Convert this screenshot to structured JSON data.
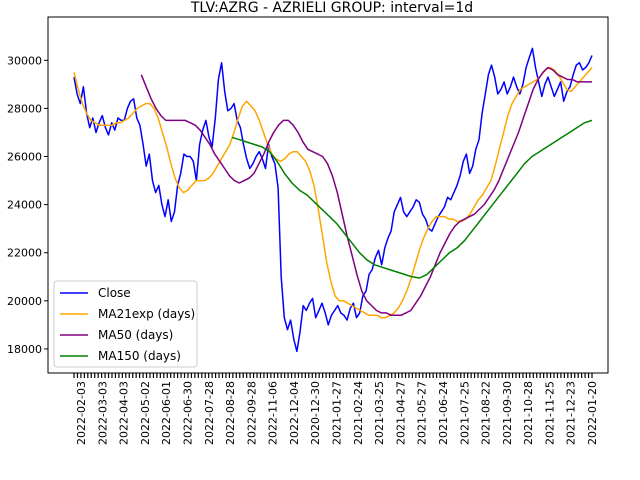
{
  "chart_data": {
    "type": "line",
    "title": "TLV:AZRG - AZRIELI GROUP: interval=1d",
    "xlabel": "",
    "ylabel": "",
    "x_tick_labels": [
      "2022-02-03",
      "2022-03-03",
      "2022-04-03",
      "2022-05-02",
      "2022-06-01",
      "2022-06-30",
      "2022-07-28",
      "2022-08-28",
      "2022-09-28",
      "2022-11-06",
      "2022-12-04",
      "2020-12-30",
      "2021-01-27",
      "2021-02-24",
      "2021-03-25",
      "2021-04-27",
      "2021-05-27",
      "2021-06-24",
      "2021-07-25",
      "2021-08-22",
      "2021-09-30",
      "2021-10-28",
      "2021-11-25",
      "2021-12-23",
      "2022-01-20"
    ],
    "y_tick_labels": [
      "18000",
      "20000",
      "22000",
      "24000",
      "26000",
      "28000",
      "30000"
    ],
    "y_ticks": [
      18000,
      20000,
      22000,
      24000,
      26000,
      28000,
      30000
    ],
    "ylim": [
      17000,
      31800
    ],
    "grid": false,
    "legend_position": "lower-left",
    "series": [
      {
        "name": "Close",
        "color": "#0000ff",
        "values": [
          29300,
          28600,
          28200,
          28900,
          27800,
          27200,
          27600,
          27000,
          27400,
          27700,
          27200,
          26900,
          27400,
          27100,
          27600,
          27500,
          27500,
          28000,
          28300,
          28400,
          27600,
          27300,
          26500,
          25600,
          26100,
          25000,
          24500,
          24800,
          24000,
          23500,
          24200,
          23300,
          23700,
          24800,
          25300,
          26100,
          26000,
          26000,
          25800,
          25000,
          26500,
          27100,
          27500,
          26800,
          26400,
          27600,
          29200,
          29900,
          28700,
          27900,
          28000,
          28200,
          27500,
          27200,
          26500,
          25900,
          25500,
          25700,
          26000,
          26200,
          25900,
          25500,
          26500,
          26000,
          25700,
          24700,
          21000,
          19300,
          18800,
          19200,
          18400,
          17900,
          18700,
          19800,
          19600,
          19900,
          20100,
          19300,
          19600,
          19900,
          19500,
          19000,
          19400,
          19600,
          19800,
          19500,
          19400,
          19200,
          19700,
          19900,
          19300,
          19500,
          20200,
          20400,
          21100,
          21300,
          21800,
          22100,
          21500,
          22200,
          22600,
          22900,
          23700,
          24000,
          24300,
          23700,
          23500,
          23700,
          23900,
          24200,
          24100,
          23600,
          23400,
          23000,
          22900,
          23200,
          23500,
          23700,
          23900,
          24300,
          24200,
          24500,
          24800,
          25200,
          25800,
          26100,
          25300,
          25600,
          26300,
          26700,
          27800,
          28600,
          29400,
          29800,
          29300,
          28600,
          28800,
          29100,
          28600,
          28900,
          29300,
          28900,
          28600,
          29000,
          29700,
          30100,
          30500,
          29700,
          29100,
          28500,
          29000,
          29300,
          28900,
          28500,
          28800,
          29100,
          28300,
          28700,
          28900,
          29400,
          29800,
          29900,
          29600,
          29700,
          29900,
          30200
        ]
      },
      {
        "name": "MA21exp (days)",
        "color": "#ffa500",
        "values": [
          29500,
          28800,
          28200,
          27800,
          27500,
          27400,
          27300,
          27300,
          27300,
          27300,
          27400,
          27400,
          27500,
          27600,
          27800,
          28000,
          28100,
          28200,
          28200,
          28000,
          27600,
          27000,
          26400,
          25700,
          25100,
          24700,
          24500,
          24600,
          24800,
          25000,
          25000,
          25000,
          25100,
          25300,
          25600,
          25900,
          26200,
          26500,
          27000,
          27600,
          28100,
          28300,
          28100,
          27900,
          27500,
          27000,
          26500,
          26100,
          25900,
          25800,
          25900,
          26100,
          26200,
          26200,
          26000,
          25800,
          25400,
          24800,
          23800,
          22700,
          21600,
          20800,
          20200,
          20000,
          20000,
          19900,
          19800,
          19700,
          19600,
          19500,
          19400,
          19400,
          19400,
          19300,
          19300,
          19400,
          19500,
          19700,
          20000,
          20400,
          20900,
          21500,
          22100,
          22600,
          23000,
          23300,
          23500,
          23500,
          23500,
          23400,
          23400,
          23300,
          23300,
          23400,
          23600,
          23900,
          24200,
          24400,
          24700,
          25000,
          25600,
          26300,
          27000,
          27700,
          28200,
          28500,
          28800,
          28900,
          29000,
          29100,
          29200,
          29400,
          29600,
          29700,
          29600,
          29400,
          29100,
          28800,
          28700,
          28900,
          29100,
          29300,
          29500,
          29700
        ]
      },
      {
        "name": "MA50 (days)",
        "color": "#800080",
        "values": [
          29400,
          28900,
          28400,
          28000,
          27700,
          27500,
          27500,
          27500,
          27500,
          27500,
          27400,
          27300,
          27100,
          26800,
          26500,
          26100,
          25800,
          25500,
          25200,
          25000,
          24900,
          25000,
          25100,
          25300,
          25700,
          26100,
          26600,
          27000,
          27300,
          27500,
          27500,
          27300,
          27000,
          26600,
          26300,
          26200,
          26100,
          26000,
          25700,
          25200,
          24500,
          23600,
          22700,
          21900,
          21100,
          20400,
          20000,
          19800,
          19600,
          19500,
          19500,
          19400,
          19400,
          19400,
          19500,
          19600,
          19900,
          20200,
          20600,
          21000,
          21500,
          22000,
          22400,
          22800,
          23100,
          23300,
          23400,
          23500,
          23600,
          23800,
          24000,
          24300,
          24600,
          25000,
          25500,
          26000,
          26500,
          27000,
          27600,
          28200,
          28800,
          29200,
          29500,
          29700,
          29600,
          29400,
          29300,
          29200,
          29200,
          29100,
          29100,
          29100,
          29100
        ]
      },
      {
        "name": "MA150 (days)",
        "color": "#008000",
        "values": [
          26800,
          26700,
          26600,
          26500,
          26400,
          26200,
          25800,
          25300,
          24900,
          24600,
          24400,
          24100,
          23800,
          23500,
          23200,
          22800,
          22400,
          22000,
          21700,
          21500,
          21400,
          21300,
          21200,
          21100,
          21000,
          20950,
          21100,
          21400,
          21700,
          22000,
          22200,
          22500,
          22900,
          23300,
          23700,
          24100,
          24500,
          24900,
          25300,
          25700,
          26000,
          26200,
          26400,
          26600,
          26800,
          27000,
          27200,
          27400,
          27500
        ]
      }
    ]
  }
}
